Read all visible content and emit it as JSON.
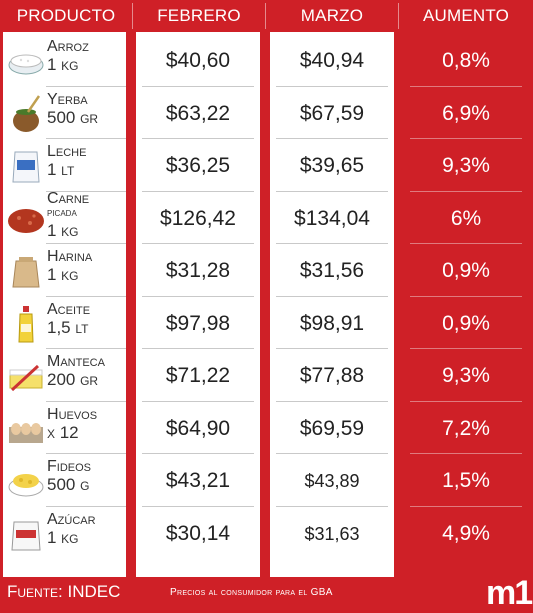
{
  "header": {
    "col_product": "Producto",
    "col_feb": "Febrero",
    "col_mar": "Marzo",
    "col_inc": "Aumento"
  },
  "chart_data": {
    "type": "table",
    "columns": [
      "Producto",
      "Febrero",
      "Marzo",
      "Aumento"
    ],
    "rows": [
      {
        "name": "Arroz",
        "unit": "1 kg",
        "feb": "$40,60",
        "mar": "$40,94",
        "inc": "0,8%",
        "icon": "rice-bowl-icon"
      },
      {
        "name": "Yerba",
        "unit": "500 gr",
        "feb": "$63,22",
        "mar": "$67,59",
        "inc": "6,9%",
        "icon": "mate-icon"
      },
      {
        "name": "Leche",
        "unit": "1 lt",
        "feb": "$36,25",
        "mar": "$39,65",
        "inc": "9,3%",
        "icon": "milk-bag-icon"
      },
      {
        "name": "Carne picada",
        "unit": "1 kg",
        "feb": "$126,42",
        "mar": "$134,04",
        "inc": "6%",
        "icon": "ground-meat-icon"
      },
      {
        "name": "Harina",
        "unit": "1 kg",
        "feb": "$31,28",
        "mar": "$31,56",
        "inc": "0,9%",
        "icon": "flour-sack-icon"
      },
      {
        "name": "Aceite",
        "unit": "1,5 lt",
        "feb": "$97,98",
        "mar": "$98,91",
        "inc": "0,9%",
        "icon": "oil-bottle-icon"
      },
      {
        "name": "Manteca",
        "unit": "200 gr",
        "feb": "$71,22",
        "mar": "$77,88",
        "inc": "9,3%",
        "icon": "butter-icon"
      },
      {
        "name": "Huevos",
        "unit": "x 12",
        "feb": "$64,90",
        "mar": "$69,59",
        "inc": "7,2%",
        "icon": "egg-carton-icon"
      },
      {
        "name": "Fideos",
        "unit": "500 g",
        "feb": "$43,21",
        "mar": "$43,89",
        "inc": "1,5%",
        "icon": "pasta-bowl-icon"
      },
      {
        "name": "Azúcar",
        "unit": "1 kg",
        "feb": "$30,14",
        "mar": "$31,63",
        "inc": "4,9%",
        "icon": "sugar-bag-icon"
      }
    ]
  },
  "colors": {
    "accent": "#cf2027",
    "panel": "#ffffff"
  },
  "footer": {
    "source": "Fuente: INDEC",
    "note": "Precios al consumidor para el GBA",
    "logo": "m1"
  }
}
